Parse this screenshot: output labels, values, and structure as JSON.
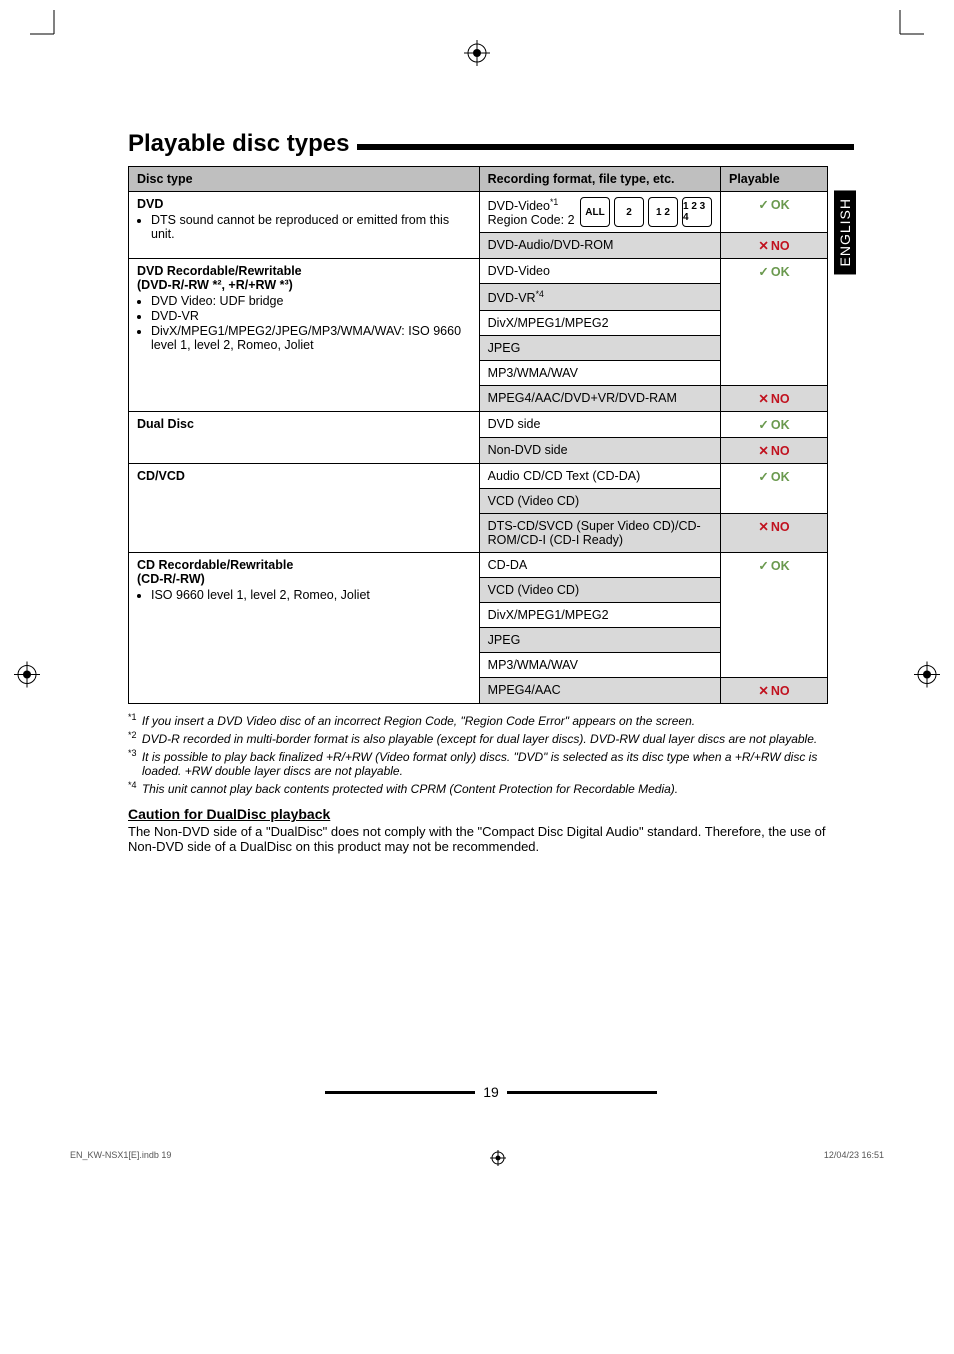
{
  "language_tab": "ENGLISH",
  "section_title": "Playable disc types",
  "table": {
    "headers": [
      "Disc type",
      "Recording format, file type, etc.",
      "Playable"
    ],
    "groups": [
      {
        "disc_label": "DVD",
        "disc_notes": [
          "DTS sound cannot be reproduced or emitted from this unit."
        ],
        "rows": [
          {
            "fmt_main": "DVD-Video",
            "fmt_sup": "*1",
            "fmt_extra": "Region Code: 2",
            "region_icons": [
              "ALL",
              "2",
              "1 2",
              "1 2 3 4"
            ],
            "playable": "OK",
            "shaded": false
          },
          {
            "fmt_main": "DVD-Audio/DVD-ROM",
            "playable": "NO",
            "shaded": true
          }
        ]
      },
      {
        "disc_label": "DVD Recordable/Rewritable",
        "disc_sub": "(DVD-R/-RW *², +R/+RW *³)",
        "disc_notes": [
          "DVD Video: UDF bridge",
          "DVD-VR",
          "DivX/MPEG1/MPEG2/JPEG/MP3/WMA/WAV: ISO 9660 level 1, level 2, Romeo, Joliet"
        ],
        "rows": [
          {
            "fmt_main": "DVD-Video",
            "playable_span_start": true
          },
          {
            "fmt_main": "DVD-VR",
            "fmt_sup": "*4",
            "shaded": true
          },
          {
            "fmt_main": "DivX/MPEG1/MPEG2"
          },
          {
            "fmt_main": "JPEG",
            "shaded": true
          },
          {
            "fmt_main": "MP3/WMA/WAV",
            "playable_span_end": "OK"
          },
          {
            "fmt_main": "MPEG4/AAC/DVD+VR/DVD-RAM",
            "playable": "NO",
            "shaded": true
          }
        ]
      },
      {
        "disc_label": "Dual Disc",
        "rows": [
          {
            "fmt_main": "DVD side",
            "playable": "OK"
          },
          {
            "fmt_main": "Non-DVD side",
            "playable": "NO",
            "shaded": true
          }
        ]
      },
      {
        "disc_label": "CD/VCD",
        "rows": [
          {
            "fmt_main": "Audio CD/CD Text (CD-DA)",
            "playable_span_start": true
          },
          {
            "fmt_main": "VCD (Video CD)",
            "shaded": true,
            "playable_span_end": "OK"
          },
          {
            "fmt_main": "DTS-CD/SVCD (Super Video CD)/CD-ROM/CD-I (CD-I Ready)",
            "playable": "NO",
            "shaded": true
          }
        ]
      },
      {
        "disc_label": "CD Recordable/Rewritable",
        "disc_sub": "(CD-R/-RW)",
        "disc_notes": [
          "ISO 9660 level 1, level 2, Romeo, Joliet"
        ],
        "rows": [
          {
            "fmt_main": "CD-DA",
            "playable_span_start": true
          },
          {
            "fmt_main": "VCD (Video CD)",
            "shaded": true
          },
          {
            "fmt_main": "DivX/MPEG1/MPEG2"
          },
          {
            "fmt_main": "JPEG",
            "shaded": true
          },
          {
            "fmt_main": "MP3/WMA/WAV",
            "playable_span_end": "OK"
          },
          {
            "fmt_main": "MPEG4/AAC",
            "playable": "NO",
            "shaded": true
          }
        ]
      }
    ]
  },
  "footnotes": [
    {
      "n": "*1",
      "text": "If you insert a DVD Video disc of an incorrect Region Code, \"Region Code Error\" appears on the screen."
    },
    {
      "n": "*2",
      "text": "DVD-R recorded in multi-border format is also playable (except for dual layer discs). DVD-RW dual layer discs are not playable."
    },
    {
      "n": "*3",
      "text": "It is possible to play back finalized +R/+RW (Video format only) discs. \"DVD\" is selected as its disc type when a +R/+RW disc is loaded. +RW double layer discs are not playable."
    },
    {
      "n": "*4",
      "text": "This unit cannot play back contents protected with CPRM (Content Protection for Recordable Media)."
    }
  ],
  "caution_heading": "Caution for DualDisc playback",
  "caution_text": "The Non-DVD side of a \"DualDisc\" does not comply with the \"Compact Disc Digital Audio\" standard. Therefore, the use of Non-DVD side of a DualDisc on this product may not be recommended.",
  "page_number": "19",
  "footer_left": "EN_KW-NSX1[E].indb   19",
  "footer_right": "12/04/23   16:51"
}
